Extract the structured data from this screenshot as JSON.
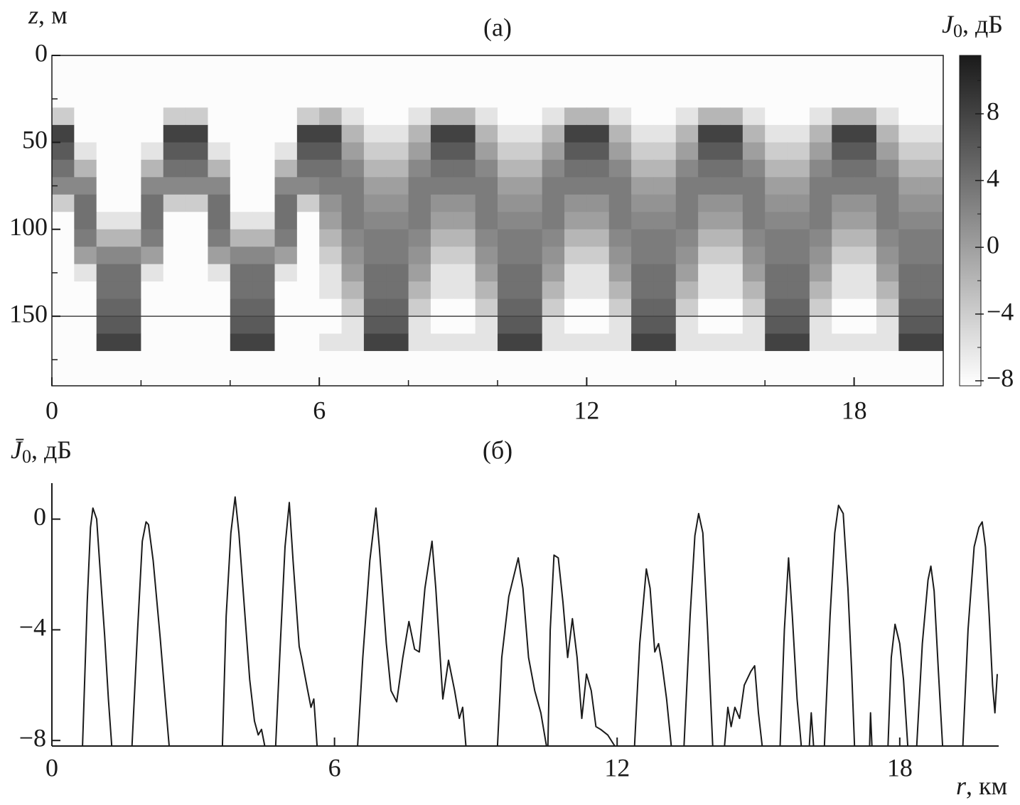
{
  "chart_data": [
    {
      "type": "heatmap",
      "title": "(а)",
      "ylabel": {
        "symbol": "z",
        "unit": ", м"
      },
      "colorbar_label": {
        "symbol": "J",
        "subscript": "0",
        "unit": ", дБ"
      },
      "xlim": [
        0,
        20
      ],
      "xticks": [
        0,
        6,
        12,
        18
      ],
      "xminor": [
        2,
        4,
        8,
        10,
        14,
        16
      ],
      "ylim": [
        0,
        190
      ],
      "invert_y": true,
      "yticks": [
        0,
        50,
        100,
        150
      ],
      "yminor": [
        25,
        75,
        125,
        175
      ],
      "hline": 150,
      "hline_color": "#444444",
      "clim": [
        -8.3,
        11.5
      ],
      "colormap": [
        "#ffffff",
        "#1a1a1a"
      ],
      "cticks": [
        {
          "value": -8,
          "label": "−8"
        },
        {
          "value": -4,
          "label": "−4"
        },
        0,
        4,
        8
      ],
      "cminor": [
        -6,
        -2,
        2,
        6,
        10
      ],
      "x_edges": [
        0,
        0.5,
        1,
        1.5,
        2,
        2.5,
        3,
        3.5,
        4,
        4.5,
        5,
        5.5,
        6,
        6.5,
        7,
        7.5,
        8,
        8.5,
        9,
        9.5,
        10,
        10.5,
        11,
        11.5,
        12,
        12.5,
        13,
        13.5,
        14,
        14.5,
        15,
        15.5,
        16,
        16.5,
        17,
        17.5,
        18,
        18.5,
        19,
        19.5,
        20
      ],
      "y_edges": [
        0,
        10,
        20,
        30,
        40,
        50,
        60,
        70,
        80,
        90,
        100,
        110,
        120,
        130,
        140,
        150,
        160,
        170,
        180,
        190
      ],
      "z": [
        [
          -8,
          -8,
          -8,
          -8,
          -8,
          -8,
          -8,
          -8,
          -8,
          -8,
          -8,
          -8,
          -8,
          -8,
          -8,
          -8,
          -8,
          -8,
          -8,
          -8,
          -8,
          -8,
          -8,
          -8,
          -8,
          -8,
          -8,
          -8,
          -8,
          -8,
          -8,
          -8,
          -8,
          -8,
          -8,
          -8,
          -8,
          -8,
          -8,
          -8
        ],
        [
          -8,
          -8,
          -8,
          -8,
          -8,
          -8,
          -8,
          -8,
          -8,
          -8,
          -8,
          -8,
          -8,
          -8,
          -8,
          -8,
          -8,
          -8,
          -8,
          -8,
          -8,
          -8,
          -8,
          -8,
          -8,
          -8,
          -8,
          -8,
          -8,
          -8,
          -8,
          -8,
          -8,
          -8,
          -8,
          -8,
          -8,
          -8,
          -8,
          -8
        ],
        [
          -8,
          -8,
          -8,
          -8,
          -8,
          -8,
          -8,
          -8,
          -8,
          -8,
          -8,
          -8,
          -8,
          -8,
          -8,
          -8,
          -8,
          -8,
          -8,
          -8,
          -8,
          -8,
          -8,
          -8,
          -8,
          -8,
          -8,
          -8,
          -8,
          -8,
          -8,
          -8,
          -8,
          -8,
          -8,
          -8,
          -8,
          -8,
          -8,
          -8
        ],
        [
          -4,
          -8,
          -8,
          -8,
          -8,
          -4,
          -4,
          -8,
          -8,
          -8,
          -8,
          -4,
          -2,
          -6,
          -8,
          -8,
          -6,
          -2,
          -2,
          -6,
          -8,
          -8,
          -6,
          -2,
          -2,
          -6,
          -8,
          -8,
          -6,
          -2,
          -2,
          -6,
          -8,
          -8,
          -6,
          -2,
          -2,
          -6,
          -8,
          -8
        ],
        [
          8,
          -8,
          -8,
          -8,
          -8,
          8,
          8,
          -8,
          -8,
          -8,
          -8,
          8,
          8,
          -2,
          -6,
          -6,
          -2,
          8,
          8,
          -2,
          -6,
          -6,
          -2,
          8,
          8,
          -2,
          -6,
          -6,
          -2,
          8,
          8,
          -2,
          -6,
          -6,
          -2,
          8,
          8,
          -2,
          -6,
          -6
        ],
        [
          6,
          -6,
          -8,
          -8,
          -6,
          6,
          6,
          -6,
          -8,
          -8,
          -6,
          6,
          6,
          0,
          -4,
          -4,
          0,
          6,
          6,
          0,
          -4,
          -4,
          0,
          6,
          6,
          0,
          -4,
          -4,
          0,
          6,
          6,
          0,
          -4,
          -4,
          0,
          6,
          6,
          0,
          -4,
          -4
        ],
        [
          4,
          -2,
          -8,
          -8,
          -2,
          4,
          4,
          -2,
          -8,
          -8,
          -2,
          4,
          4,
          2,
          -2,
          -2,
          2,
          4,
          4,
          2,
          -2,
          -2,
          2,
          4,
          4,
          2,
          -2,
          -2,
          2,
          4,
          4,
          2,
          -2,
          -2,
          2,
          4,
          4,
          2,
          -2,
          -2
        ],
        [
          2,
          2,
          -8,
          -8,
          2,
          2,
          2,
          2,
          -8,
          -8,
          2,
          2,
          3,
          3,
          0,
          0,
          3,
          3,
          3,
          3,
          0,
          0,
          3,
          3,
          3,
          3,
          0,
          0,
          3,
          3,
          3,
          3,
          0,
          0,
          3,
          3,
          3,
          3,
          0,
          0
        ],
        [
          -4,
          4,
          -8,
          -8,
          4,
          -4,
          -4,
          4,
          -8,
          -8,
          4,
          -4,
          1,
          3,
          1,
          1,
          3,
          1,
          1,
          3,
          1,
          1,
          3,
          1,
          1,
          3,
          1,
          1,
          3,
          1,
          1,
          3,
          1,
          1,
          3,
          1,
          1,
          3,
          1,
          1
        ],
        [
          -8,
          4,
          -6,
          -6,
          4,
          -8,
          -8,
          4,
          -6,
          -6,
          4,
          -8,
          0,
          3,
          2,
          2,
          3,
          0,
          0,
          3,
          2,
          2,
          3,
          0,
          0,
          3,
          2,
          2,
          3,
          0,
          0,
          3,
          2,
          2,
          3,
          0,
          0,
          3,
          2,
          2
        ],
        [
          -8,
          3,
          -2,
          -2,
          3,
          -8,
          -8,
          3,
          -2,
          -2,
          3,
          -8,
          -2,
          2,
          3,
          3,
          2,
          -2,
          -2,
          2,
          3,
          3,
          2,
          -2,
          -2,
          2,
          3,
          3,
          2,
          -2,
          -2,
          2,
          3,
          3,
          2,
          -2,
          -2,
          2,
          3,
          3
        ],
        [
          -8,
          0,
          2,
          2,
          0,
          -8,
          -8,
          0,
          2,
          2,
          0,
          -8,
          -4,
          1,
          3,
          3,
          1,
          -4,
          -4,
          1,
          3,
          3,
          1,
          -4,
          -4,
          1,
          3,
          3,
          1,
          -4,
          -4,
          1,
          3,
          3,
          1,
          -4,
          -4,
          1,
          3,
          3
        ],
        [
          -8,
          -6,
          4,
          4,
          -6,
          -8,
          -8,
          -6,
          4,
          4,
          -6,
          -8,
          -6,
          0,
          4,
          4,
          0,
          -6,
          -6,
          0,
          4,
          4,
          0,
          -6,
          -6,
          0,
          4,
          4,
          0,
          -6,
          -6,
          0,
          4,
          4,
          0,
          -6,
          -6,
          0,
          4,
          4
        ],
        [
          -8,
          -8,
          4,
          4,
          -8,
          -8,
          -8,
          -8,
          4,
          4,
          -8,
          -8,
          -6,
          -2,
          4,
          4,
          -2,
          -6,
          -6,
          -2,
          4,
          4,
          -2,
          -6,
          -6,
          -2,
          4,
          4,
          -2,
          -6,
          -6,
          -2,
          4,
          4,
          -2,
          -6,
          -6,
          -2,
          4,
          4
        ],
        [
          -8,
          -8,
          5,
          5,
          -8,
          -8,
          -8,
          -8,
          5,
          5,
          -8,
          -8,
          -8,
          -4,
          5,
          5,
          -4,
          -8,
          -8,
          -4,
          5,
          5,
          -4,
          -8,
          -8,
          -4,
          5,
          5,
          -4,
          -8,
          -8,
          -4,
          5,
          5,
          -4,
          -8,
          -8,
          -4,
          5,
          5
        ],
        [
          -8,
          -8,
          6,
          6,
          -8,
          -8,
          -8,
          -8,
          6,
          6,
          -8,
          -8,
          -8,
          -6,
          6,
          6,
          -6,
          -8,
          -8,
          -6,
          6,
          6,
          -6,
          -8,
          -8,
          -6,
          6,
          6,
          -6,
          -8,
          -8,
          -6,
          6,
          6,
          -6,
          -8,
          -8,
          -6,
          6,
          6
        ],
        [
          -8,
          -8,
          8,
          8,
          -8,
          -8,
          -8,
          -8,
          8,
          8,
          -8,
          -8,
          -6,
          -6,
          8,
          8,
          -6,
          -6,
          -6,
          -6,
          8,
          8,
          -6,
          -6,
          -6,
          -6,
          8,
          8,
          -6,
          -6,
          -6,
          -6,
          8,
          8,
          -6,
          -6,
          -6,
          -6,
          8,
          8
        ],
        [
          -8,
          -8,
          -8,
          -8,
          -8,
          -8,
          -8,
          -8,
          -8,
          -8,
          -8,
          -8,
          -8,
          -8,
          -8,
          -8,
          -8,
          -8,
          -8,
          -8,
          -8,
          -8,
          -8,
          -8,
          -8,
          -8,
          -8,
          -8,
          -8,
          -8,
          -8,
          -8,
          -8,
          -8,
          -8,
          -8,
          -8,
          -8,
          -8,
          -8
        ],
        [
          -8,
          -8,
          -8,
          -8,
          -8,
          -8,
          -8,
          -8,
          -8,
          -8,
          -8,
          -8,
          -8,
          -8,
          -8,
          -8,
          -8,
          -8,
          -8,
          -8,
          -8,
          -8,
          -8,
          -8,
          -8,
          -8,
          -8,
          -8,
          -8,
          -8,
          -8,
          -8,
          -8,
          -8,
          -8,
          -8,
          -8,
          -8,
          -8,
          -8
        ]
      ]
    },
    {
      "type": "line",
      "title": "(б)",
      "ylabel": {
        "symbol": "J̄",
        "subscript": "0",
        "unit": ", дБ"
      },
      "xlabel": {
        "symbol": "r",
        "unit": ", км"
      },
      "xlim": [
        0,
        20.1
      ],
      "xticks": [
        0,
        6,
        12,
        18
      ],
      "ylim": [
        -8.2,
        1.3
      ],
      "yticks": [
        {
          "value": -8,
          "label": "−8"
        },
        {
          "value": -4,
          "label": "−4"
        },
        0
      ],
      "series": [
        {
          "color": "#1a1a1a",
          "x": [
            0.65,
            0.75,
            0.82,
            0.87,
            0.95,
            1.05,
            1.12,
            1.2,
            1.27,
            1.5,
            1.7,
            1.82,
            1.92,
            2.0,
            2.05,
            2.15,
            2.3,
            2.42,
            2.49,
            3.0,
            3.62,
            3.7,
            3.8,
            3.89,
            3.97,
            4.1,
            4.2,
            4.3,
            4.38,
            4.45,
            4.52,
            4.62,
            4.75,
            4.85,
            4.95,
            5.04,
            5.12,
            5.25,
            5.3,
            5.42,
            5.5,
            5.56,
            5.63,
            6.0,
            6.49,
            6.6,
            6.75,
            6.88,
            6.95,
            7.1,
            7.2,
            7.32,
            7.45,
            7.58,
            7.7,
            7.8,
            7.92,
            8.07,
            8.15,
            8.3,
            8.42,
            8.55,
            8.65,
            8.72,
            8.79,
            9.1,
            9.46,
            9.55,
            9.7,
            9.9,
            10.0,
            10.12,
            10.25,
            10.38,
            10.5,
            10.51,
            10.53,
            10.58,
            10.66,
            10.75,
            10.85,
            10.95,
            11.05,
            11.15,
            11.25,
            11.35,
            11.45,
            11.55,
            11.65,
            11.8,
            11.95,
            12.15,
            12.37,
            12.48,
            12.62,
            12.7,
            12.8,
            12.88,
            12.95,
            13.05,
            13.15,
            13.3,
            13.42,
            13.55,
            13.65,
            13.73,
            13.82,
            13.92,
            14.03,
            14.15,
            14.28,
            14.35,
            14.42,
            14.5,
            14.6,
            14.7,
            14.84,
            14.92,
            15.0,
            15.08,
            15.3,
            15.46,
            15.55,
            15.64,
            15.72,
            15.82,
            15.91,
            16.0,
            16.08,
            16.12,
            16.17,
            16.3,
            16.4,
            16.52,
            16.62,
            16.7,
            16.8,
            16.9,
            16.98,
            17.04,
            17.2,
            17.36,
            17.38,
            17.41,
            17.6,
            17.75,
            17.82,
            17.9,
            18.0,
            18.08,
            18.17,
            18.27,
            18.36,
            18.48,
            18.6,
            18.66,
            18.73,
            18.82,
            18.91,
            19.1,
            19.34,
            19.45,
            19.58,
            19.68,
            19.75,
            19.82,
            19.9,
            19.97,
            20.02,
            20.07
          ],
          "values": [
            -8.2,
            -3,
            -0.3,
            0.4,
            0,
            -2.5,
            -4.2,
            -6.5,
            -8.2,
            null,
            -8.2,
            -4,
            -0.8,
            -0.1,
            -0.2,
            -1.5,
            -4.3,
            -6.8,
            -8.2,
            null,
            -8.2,
            -3.5,
            -0.5,
            0.8,
            -0.5,
            -3.5,
            -5.8,
            -7.3,
            -7.8,
            -7.6,
            -8.2,
            null,
            -8.2,
            -4.5,
            -1,
            0.6,
            -1.5,
            -4.6,
            -5,
            -6.1,
            -6.8,
            -6.5,
            -8.2,
            null,
            -8.2,
            -5,
            -1.5,
            0.4,
            -1,
            -4.5,
            -6.2,
            -6.6,
            -5,
            -3.7,
            -4.7,
            -4.8,
            -2.5,
            -0.8,
            -2.5,
            -6.5,
            -5.1,
            -6.2,
            -7.2,
            -6.8,
            -8.2,
            null,
            -8.2,
            -5,
            -2.8,
            -1.4,
            -2.5,
            -5,
            -6.2,
            -7,
            -8.2,
            null,
            -8.2,
            -4,
            -1.3,
            -1.4,
            -3,
            -5,
            -3.6,
            -5,
            -7.2,
            -5.6,
            -6.2,
            -7.5,
            -7.6,
            -7.8,
            -8.2,
            null,
            -8.2,
            -4.5,
            -1.8,
            -2.5,
            -4.8,
            -4.5,
            -5.2,
            -6.5,
            -8.2,
            null,
            -8.2,
            -3.5,
            -0.6,
            0.2,
            -0.5,
            -4,
            -8.2,
            null,
            -8.2,
            -6.8,
            -7.5,
            -6.8,
            -7.2,
            -6,
            -5.5,
            -5.3,
            -7,
            -8.2,
            null,
            -8.2,
            -4,
            -1.4,
            -3.5,
            -6.5,
            -8.2,
            null,
            -8.2,
            -7,
            -8.2,
            null,
            -8.2,
            -3.5,
            -0.5,
            0.5,
            0.2,
            -2.5,
            -5.5,
            -8.2,
            null,
            -8.2,
            -7,
            -8.2,
            null,
            -8.2,
            -5,
            -3.8,
            -4.5,
            -5.8,
            -8.2,
            null,
            -8.2,
            -4.5,
            -2.2,
            -1.7,
            -2.6,
            -5.5,
            -8.2,
            null,
            -8.2,
            -4,
            -1,
            -0.3,
            -0.1,
            -1,
            -3.5,
            -6,
            -7,
            -5.6
          ]
        }
      ]
    }
  ]
}
